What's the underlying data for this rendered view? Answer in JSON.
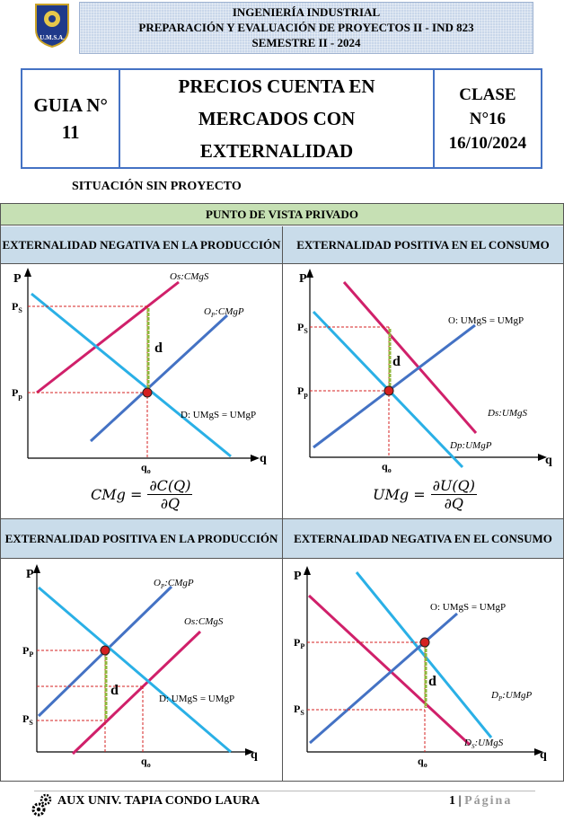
{
  "header": {
    "line1": "INGENIERÍA INDUSTRIAL",
    "line2": "PREPARACIÓN Y EVALUACIÓN DE PROYECTOS II  -  IND 823",
    "line3": "SEMESTRE II - 2024",
    "logo_text": "U.M.S.A."
  },
  "title_table": {
    "guia_line1": "GUIA N°",
    "guia_line2": "11",
    "topic_line1": "PRECIOS CUENTA EN",
    "topic_line2": "MERCADOS CON",
    "topic_line3": "EXTERNALIDAD",
    "clase_line1": "CLASE",
    "clase_line2": "N°16",
    "clase_line3": "16/10/2024"
  },
  "subtitle": "SITUACIÓN SIN PROYECTO",
  "section_title": "PUNTO DE VISTA PRIVADO",
  "panels": [
    {
      "title": "EXTERNALIDAD NEGATIVA EN LA PRODUCCIÓN",
      "y_axis": "P",
      "x_axis": "q",
      "p_upper": "P",
      "p_upper_sub": "S",
      "p_lower": "P",
      "p_lower_sub": "p",
      "q_label": "q",
      "q_sub": "o",
      "distance": "d",
      "curve_social": "Os:CMgS",
      "curve_private_main": "O",
      "curve_private_sub": "P",
      "curve_private_rest": ":CMgP",
      "curve_demand": "D: UMgS = UMgP"
    },
    {
      "title": "EXTERNALIDAD POSITIVA EN EL CONSUMO",
      "y_axis": "P",
      "x_axis": "q",
      "p_upper": "P",
      "p_upper_sub": "S",
      "p_lower": "P",
      "p_lower_sub": "p",
      "q_label": "q",
      "q_sub": "o",
      "distance": "d",
      "curve_supply": "O: UMgS = UMgP",
      "curve_social": "Ds:UMgS",
      "curve_private": "Dp:UMgP"
    },
    {
      "title": "EXTERNALIDAD POSITIVA EN LA PRODUCCIÓN",
      "y_axis": "P",
      "x_axis": "q",
      "p_upper": "P",
      "p_upper_sub": "P",
      "p_lower": "P",
      "p_lower_sub": "S",
      "q_label": "q",
      "q_sub": "o",
      "distance": "d",
      "curve_private_main": "O",
      "curve_private_sub": "P",
      "curve_private_rest": ":CMgP",
      "curve_social": "Os:CMgS",
      "curve_demand": "D: UMgS = UMgP"
    },
    {
      "title": "EXTERNALIDAD NEGATIVA EN EL CONSUMO",
      "y_axis": "P",
      "x_axis": "q",
      "p_upper": "P",
      "p_upper_sub": "P",
      "p_lower": "P",
      "p_lower_sub": "S",
      "q_label": "q",
      "q_sub": "o",
      "distance": "d",
      "curve_supply": "O: UMgS = UMgP",
      "curve_private_main": "D",
      "curve_private_sub": "P",
      "curve_private_rest": ":UMgP",
      "curve_social_main": "D",
      "curve_social_sub": "S",
      "curve_social_rest": ":UMgS"
    }
  ],
  "formulas": [
    {
      "lhs": "CMg =",
      "num": "∂C(Q)",
      "den": "∂Q"
    },
    {
      "lhs": "UMg =",
      "num": "∂U(Q)",
      "den": "∂Q"
    }
  ],
  "footer": {
    "author": "AUX UNIV. TAPIA CONDO LAURA",
    "page_number": "1",
    "separator": "|",
    "page_word": "Página"
  },
  "colors": {
    "social_curve": "#d0206a",
    "private_supply": "#4472c4",
    "demand": "#2ab0e6",
    "distance_line": "#8fb63a",
    "equilibrium_point": "#d42020",
    "guide_line": "#d42020",
    "title_border": "#4472c4"
  }
}
